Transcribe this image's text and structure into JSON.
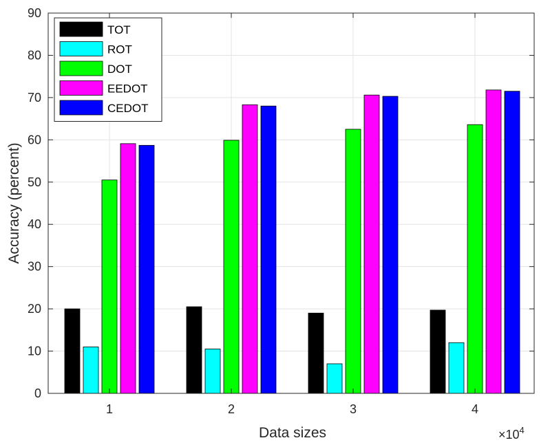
{
  "chart_data": {
    "type": "bar",
    "title": "",
    "xlabel": "Data sizes",
    "ylabel": "Accuracy (percent)",
    "x_exponent_base": "×10",
    "x_exponent_power": "4",
    "categories": [
      "1",
      "2",
      "3",
      "4"
    ],
    "ylim": [
      0,
      90
    ],
    "yticks": [
      "0",
      "10",
      "20",
      "30",
      "40",
      "50",
      "60",
      "70",
      "80",
      "90"
    ],
    "grid": true,
    "legend_position": "top-left",
    "series": [
      {
        "name": "TOT",
        "color": "#000000",
        "values": [
          20,
          20.5,
          19,
          19.7
        ]
      },
      {
        "name": "ROT",
        "color": "#00ffff",
        "values": [
          11,
          10.5,
          7,
          12
        ]
      },
      {
        "name": "DOT",
        "color": "#00ff00",
        "values": [
          50.5,
          59.9,
          62.5,
          63.6
        ]
      },
      {
        "name": "EEDOT",
        "color": "#ff00ff",
        "values": [
          59.1,
          68.3,
          70.6,
          71.8
        ]
      },
      {
        "name": "CEDOT",
        "color": "#0000ff",
        "values": [
          58.7,
          68,
          70.3,
          71.5
        ]
      }
    ]
  }
}
